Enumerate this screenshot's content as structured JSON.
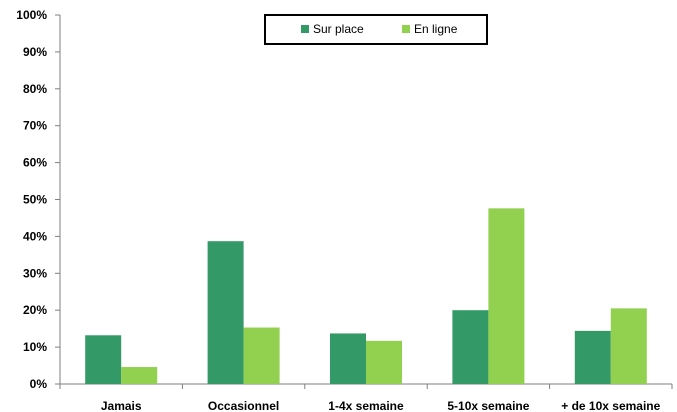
{
  "chart_data": {
    "type": "bar",
    "categories": [
      "Jamais",
      "Occasionnel",
      "1-4x semaine",
      "5-10x semaine",
      "+ de 10x semaine"
    ],
    "series": [
      {
        "name": "Sur place",
        "color": "#339966",
        "values": [
          13.2,
          38.7,
          13.7,
          20.0,
          14.4
        ]
      },
      {
        "name": "En ligne",
        "color": "#92D050",
        "values": [
          4.6,
          15.3,
          11.7,
          47.6,
          20.5
        ]
      }
    ],
    "ylim": [
      0,
      100
    ],
    "yticks": [
      "0%",
      "10%",
      "20%",
      "30%",
      "40%",
      "50%",
      "60%",
      "70%",
      "80%",
      "90%",
      "100%"
    ],
    "title": "",
    "xlabel": "",
    "ylabel": "",
    "grid": false,
    "legend": "top-center"
  }
}
